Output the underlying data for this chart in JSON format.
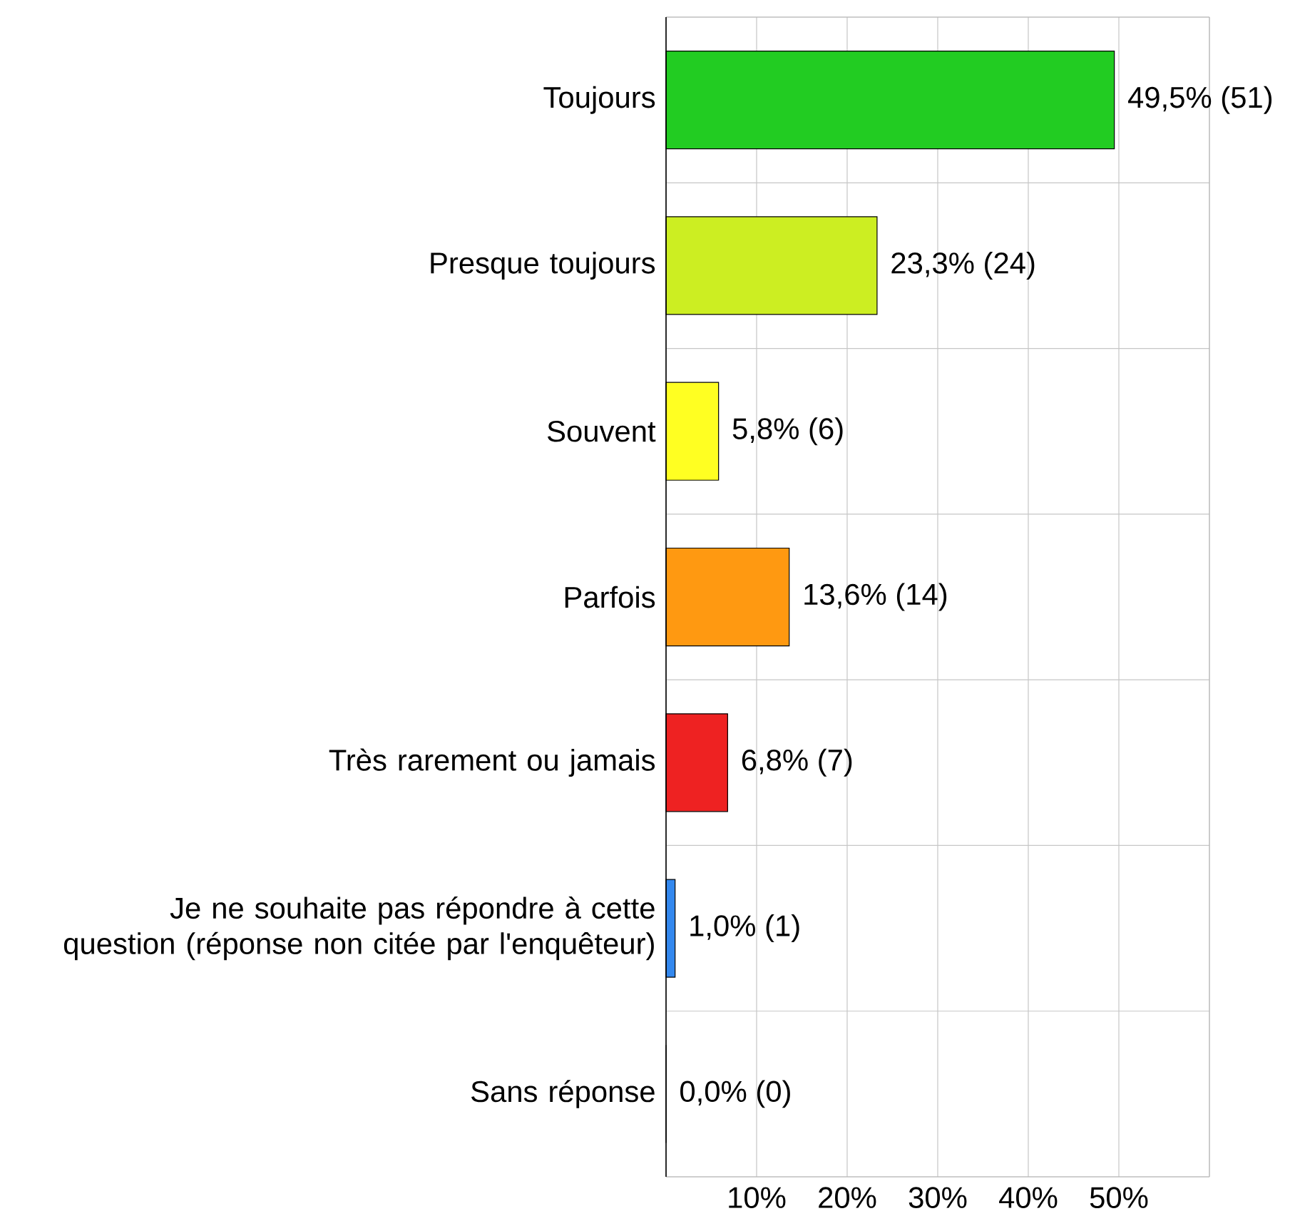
{
  "chart_data": {
    "type": "bar",
    "orientation": "horizontal",
    "categories": [
      "Toujours",
      "Presque toujours",
      "Souvent",
      "Parfois",
      "Très rarement ou jamais",
      "Je ne souhaite pas répondre à cette question (réponse non citée par l'enquêteur)",
      "Sans réponse"
    ],
    "values": [
      49.5,
      23.3,
      5.8,
      13.6,
      6.8,
      1.0,
      0.0
    ],
    "colors": [
      "#22cc22",
      "#ccee22",
      "#ffff22",
      "#ff9911",
      "#ee2222",
      "#3388ee",
      "#000080"
    ],
    "value_labels": [
      "49,5% (51)",
      "23,3% (24)",
      "5,8% (6)",
      "13,6% (14)",
      "6,8% (7)",
      "1,0% (1)",
      "0,0% (0)"
    ],
    "xlim": [
      0,
      60
    ],
    "xticks": [
      {
        "value": 0,
        "label": null
      },
      {
        "value": 10,
        "label": "10%"
      },
      {
        "value": 20,
        "label": "20%"
      },
      {
        "value": 30,
        "label": "30%"
      },
      {
        "value": 40,
        "label": "40%"
      },
      {
        "value": 50,
        "label": "50%"
      },
      {
        "value": 60,
        "label": null
      }
    ],
    "grid": true
  }
}
